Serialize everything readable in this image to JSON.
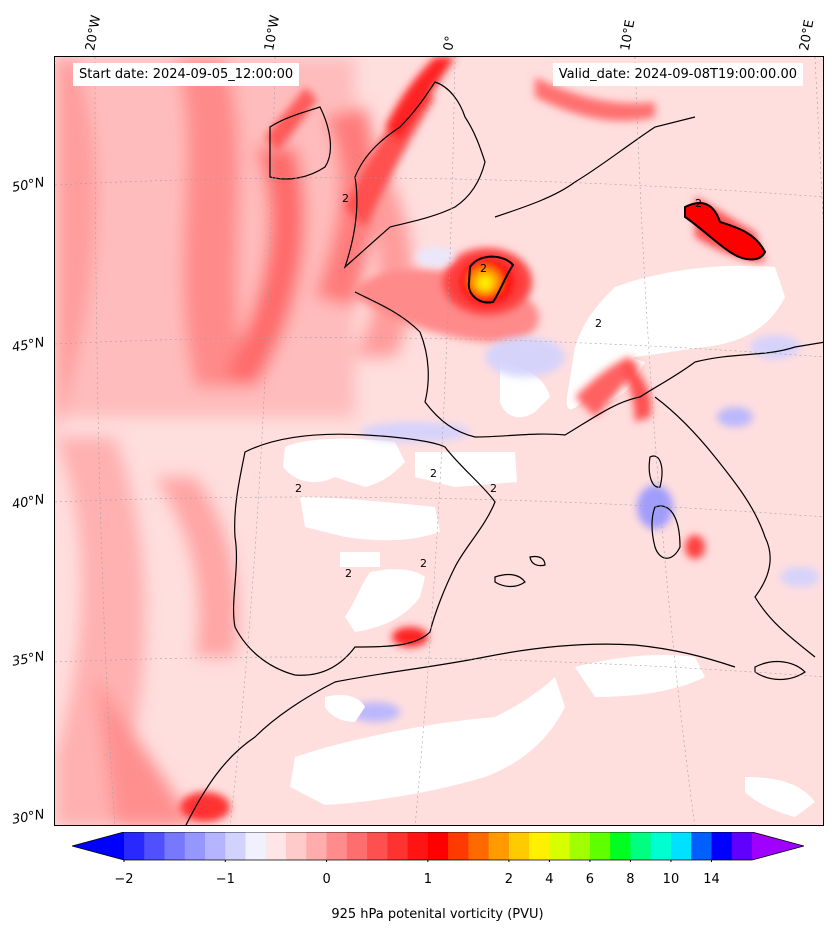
{
  "header": {
    "start_date": "Start date: 2024-09-05_12:00:00",
    "valid_date": "Valid_date: 2024-09-08T19:00:00.00"
  },
  "map": {
    "type": "filled-contour map",
    "region": "Western Europe / Iberian Peninsula",
    "variable": "925 hPa potenital vorticity",
    "units": "PVU",
    "contour_line_value": "2",
    "longitude_labels": [
      "20°W",
      "10°W",
      "0°",
      "10°E",
      "20°E"
    ],
    "latitude_labels": [
      "50°N",
      "45°N",
      "40°N",
      "35°N",
      "30°N"
    ]
  },
  "colorbar": {
    "label": "925 hPa potenital vorticity (PVU)",
    "ticks": [
      "−2",
      "−1",
      "0",
      "1",
      "2",
      "4",
      "6",
      "8",
      "10",
      "14"
    ],
    "colors": [
      "#0000ff",
      "#2828ff",
      "#5050ff",
      "#7878ff",
      "#9696ff",
      "#b4b4ff",
      "#d2d2ff",
      "#f0f0ff",
      "#ffe6e6",
      "#ffcaca",
      "#ffacac",
      "#ff8c8c",
      "#ff6e6e",
      "#ff5050",
      "#ff3232",
      "#ff1414",
      "#ff0000",
      "#ff3a00",
      "#ff6a00",
      "#ff9a00",
      "#ffca00",
      "#fff000",
      "#d8ff00",
      "#a0ff00",
      "#60ff00",
      "#00ff20",
      "#00ff80",
      "#00ffd0",
      "#00e0ff",
      "#0060ff",
      "#0000ff",
      "#6000ff",
      "#a000ff"
    ]
  }
}
